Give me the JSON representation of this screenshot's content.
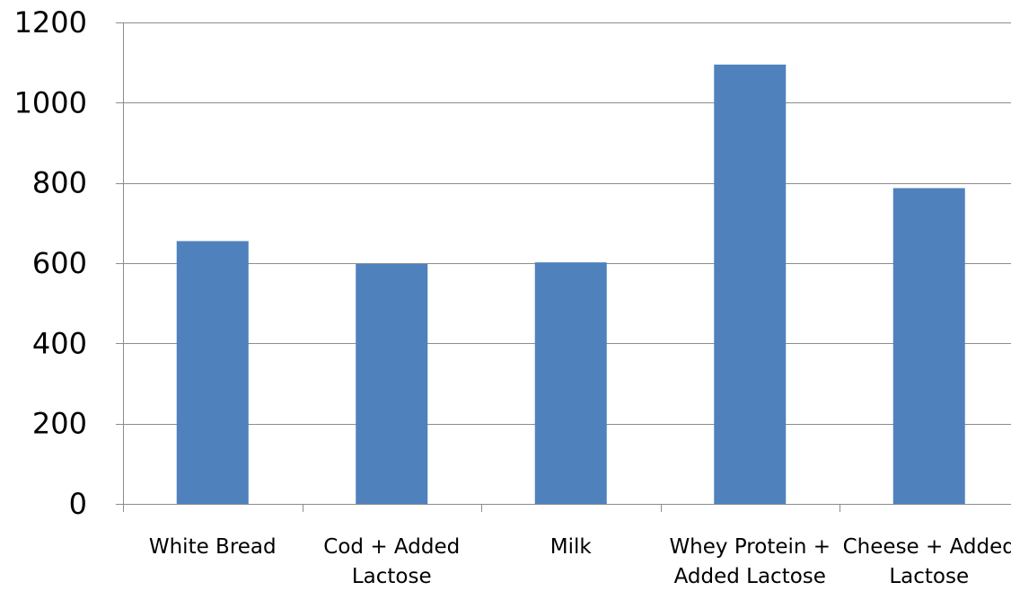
{
  "chart_data": {
    "type": "bar",
    "categories": [
      [
        "White Bread"
      ],
      [
        "Cod + Added",
        "Lactose"
      ],
      [
        "Milk"
      ],
      [
        "Whey Protein +",
        "Added Lactose"
      ],
      [
        "Cheese + Added",
        "Lactose"
      ]
    ],
    "values": [
      655,
      598,
      602,
      1095,
      787
    ],
    "ylim": [
      0,
      1200
    ],
    "y_ticks": [
      0,
      200,
      400,
      600,
      800,
      1000,
      1200
    ],
    "grid": true,
    "bar_color": "#4f81bd",
    "grid_color": "#8c8c8c"
  }
}
